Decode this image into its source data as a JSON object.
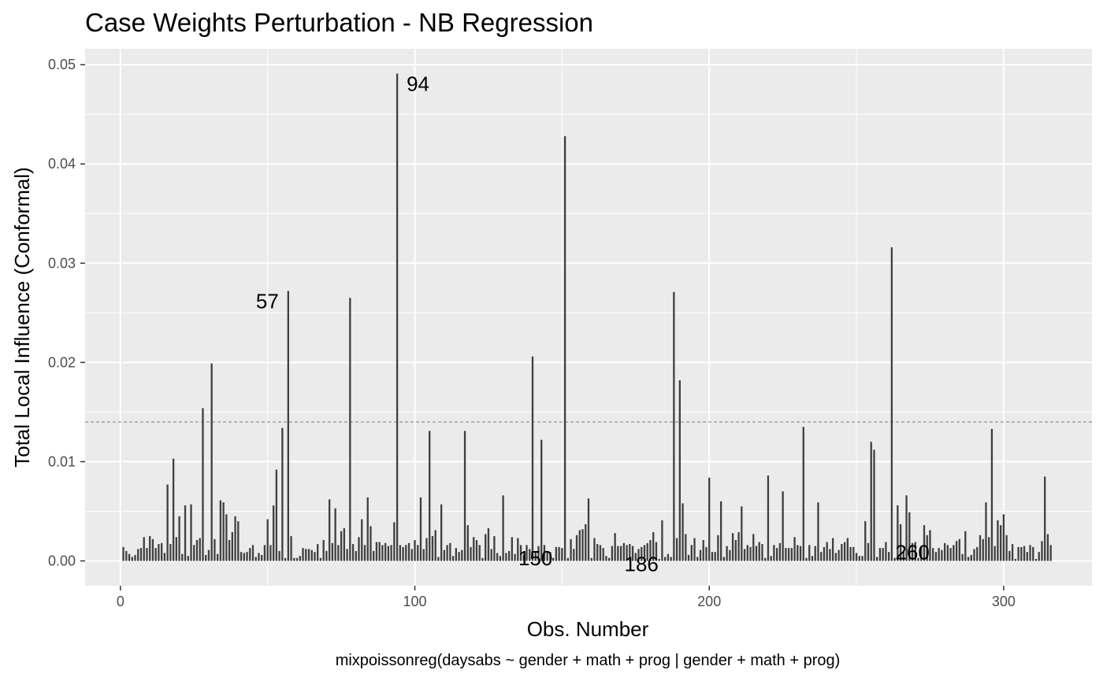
{
  "chart_data": {
    "type": "bar",
    "title": "Case Weights Perturbation - NB Regression",
    "xlabel": "Obs. Number",
    "ylabel": "Total Local Influence (Conformal)",
    "caption": "mixpoissonreg(daysabs ~ gender + math + prog | gender + math + prog)",
    "xlim": [
      -12,
      330
    ],
    "ylim": [
      -0.0025,
      0.0516
    ],
    "x_ticks": [
      0,
      100,
      200,
      300
    ],
    "x_tick_labels": [
      "0",
      "100",
      "200",
      "300"
    ],
    "y_ticks": [
      0.0,
      0.01,
      0.02,
      0.03,
      0.04,
      0.05
    ],
    "y_tick_labels": [
      "0.00",
      "0.01",
      "0.02",
      "0.03",
      "0.04",
      "0.05"
    ],
    "grid": true,
    "threshold": 0.014,
    "bar_color": "#404040",
    "background_color": "#ebebeb",
    "x_start": 1,
    "values": [
      0.0014,
      0.001,
      0.0007,
      0.0004,
      0.0006,
      0.0012,
      0.0013,
      0.0024,
      0.0013,
      0.0025,
      0.0022,
      0.0013,
      0.0017,
      0.0018,
      0.0008,
      0.0077,
      0.0017,
      0.0103,
      0.0024,
      0.0045,
      0.0007,
      0.0056,
      0.0005,
      0.0057,
      0.0016,
      0.0021,
      0.0023,
      0.0154,
      0.0006,
      0.0011,
      0.0199,
      0.0022,
      0.0007,
      0.0061,
      0.0059,
      0.0047,
      0.0021,
      0.0029,
      0.0045,
      0.004,
      0.0009,
      0.0008,
      0.0009,
      0.0013,
      0.0016,
      0.0004,
      0.0008,
      0.0006,
      0.0016,
      0.0042,
      0.0016,
      0.0056,
      0.0092,
      0.001,
      0.0134,
      0.0003,
      0.0272,
      0.0025,
      0.0003,
      0.0003,
      0.0005,
      0.0013,
      0.0012,
      0.0012,
      0.0011,
      0.0009,
      0.0017,
      0.0003,
      0.0021,
      0.001,
      0.0062,
      0.0018,
      0.0053,
      0.0016,
      0.003,
      0.0033,
      0.0012,
      0.0265,
      0.0017,
      0.001,
      0.0024,
      0.0042,
      0.0016,
      0.0064,
      0.0035,
      0.001,
      0.0019,
      0.0019,
      0.0016,
      0.0018,
      0.0015,
      0.0016,
      0.0039,
      0.0491,
      0.0016,
      0.0014,
      0.0016,
      0.0018,
      0.0012,
      0.0021,
      0.0016,
      0.0064,
      0.0012,
      0.0023,
      0.0131,
      0.0025,
      0.0031,
      0.0004,
      0.0057,
      0.0011,
      0.0016,
      0.0018,
      0.0005,
      0.0013,
      0.0009,
      0.0011,
      0.0131,
      0.0036,
      0.0014,
      0.0024,
      0.0021,
      0.0016,
      0.0003,
      0.0027,
      0.0033,
      0.0012,
      0.0025,
      0.0008,
      0.0005,
      0.0066,
      0.0008,
      0.001,
      0.0024,
      0.0007,
      0.0023,
      0.0016,
      0.0006,
      0.0016,
      0.0012,
      0.0206,
      0.001,
      0.0015,
      0.0122,
      0.0016,
      0.0009,
      0.0009,
      0.0003,
      0.0014,
      0.0014,
      0.0013,
      0.0428,
      0.0003,
      0.0022,
      0.0012,
      0.0026,
      0.0031,
      0.0032,
      0.0037,
      0.0063,
      0.0003,
      0.0023,
      0.0017,
      0.0016,
      0.0013,
      0.0005,
      0.0003,
      0.0015,
      0.0028,
      0.0015,
      0.0015,
      0.0018,
      0.0016,
      0.0017,
      0.0015,
      0.0008,
      0.0012,
      0.0014,
      0.0016,
      0.0018,
      0.0021,
      0.0029,
      0.0019,
      0.0002,
      0.0041,
      0.0004,
      0.0007,
      0.0004,
      0.0271,
      0.0023,
      0.0182,
      0.0058,
      0.0027,
      0.0006,
      0.0016,
      0.0023,
      0.0004,
      0.0011,
      0.0021,
      0.0014,
      0.0084,
      0.0009,
      0.0009,
      0.0026,
      0.006,
      0.0004,
      0.0015,
      0.0011,
      0.0028,
      0.0021,
      0.0029,
      0.0055,
      0.0012,
      0.0016,
      0.0014,
      0.0027,
      0.0015,
      0.0019,
      0.0017,
      0.0003,
      0.0086,
      0.0005,
      0.0016,
      0.0013,
      0.0018,
      0.007,
      0.0013,
      0.0013,
      0.0013,
      0.0024,
      0.0016,
      0.0015,
      0.0135,
      0.0003,
      0.0016,
      0.0005,
      0.0015,
      0.0059,
      0.0009,
      0.0014,
      0.0019,
      0.0012,
      0.0023,
      0.0008,
      0.0011,
      0.0017,
      0.0019,
      0.0023,
      0.0014,
      0.0014,
      0.0008,
      0.0005,
      0.0005,
      0.004,
      0.0018,
      0.012,
      0.0112,
      0.0004,
      0.0013,
      0.0013,
      0.0019,
      0.0009,
      0.0316,
      0.0003,
      0.0056,
      0.0037,
      0.0009,
      0.0066,
      0.0049,
      0.0018,
      0.0019,
      0.0003,
      0.0014,
      0.0036,
      0.0026,
      0.0031,
      0.0013,
      0.0009,
      0.0013,
      0.0011,
      0.0018,
      0.0016,
      0.0013,
      0.0016,
      0.002,
      0.0022,
      0.0007,
      0.003,
      0.0004,
      0.0006,
      0.0012,
      0.0014,
      0.0026,
      0.0022,
      0.0059,
      0.0024,
      0.0133,
      0.0015,
      0.0041,
      0.0036,
      0.0047,
      0.0026,
      0.001,
      0.0017,
      0.0002,
      0.0014,
      0.0014,
      0.0015,
      0.0009,
      0.0016,
      0.0014,
      0.0002,
      0.0009,
      0.002,
      0.0085,
      0.0027,
      0.0016
    ],
    "annotations": [
      {
        "obs": 57,
        "label": "57",
        "side": "left"
      },
      {
        "obs": 94,
        "label": "94",
        "side": "right"
      },
      {
        "obs": 150,
        "label": "150",
        "side": "left"
      },
      {
        "obs": 186,
        "label": "186",
        "side": "left"
      },
      {
        "obs": 260,
        "label": "260",
        "side": "right"
      }
    ]
  }
}
